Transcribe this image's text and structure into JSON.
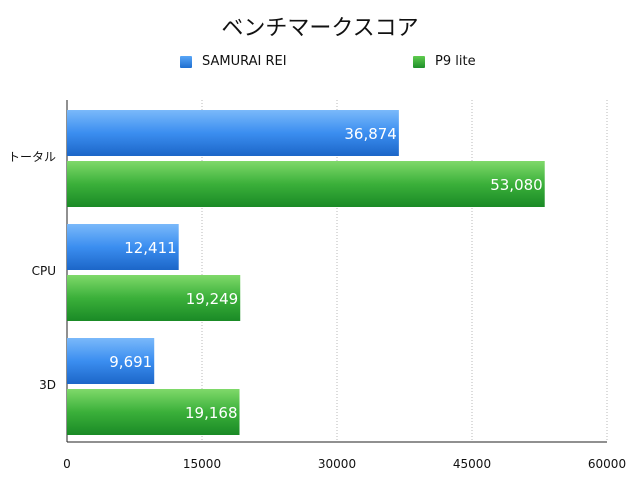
{
  "chart_data": {
    "type": "bar",
    "orientation": "horizontal",
    "title": "ベンチマークスコア",
    "categories": [
      "トータル",
      "CPU",
      "3D"
    ],
    "series": [
      {
        "name": "SAMURAI REI",
        "values": [
          36874,
          12411,
          9691
        ],
        "labels": [
          "36,874",
          "12,411",
          "9,691"
        ],
        "color": "#2b7fe0"
      },
      {
        "name": "P9 lite",
        "values": [
          53080,
          19249,
          19168
        ],
        "labels": [
          "53,080",
          "19,249",
          "19,168"
        ],
        "color": "#2ea82e"
      }
    ],
    "xlim": [
      0,
      60000
    ],
    "x_ticks": [
      0,
      15000,
      30000,
      45000,
      60000
    ],
    "x_tick_labels": [
      "0",
      "15000",
      "30000",
      "45000",
      "60000"
    ],
    "grid": true,
    "legend_position": "top"
  }
}
